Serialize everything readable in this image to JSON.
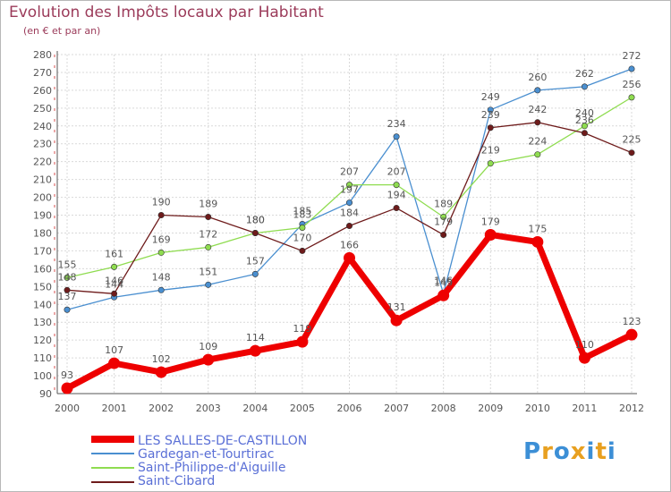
{
  "header": {
    "title": "Evolution des Impôts locaux par Habitant",
    "subtitle": "(en € et par an)"
  },
  "logo": {
    "text": "Proxiti"
  },
  "chart_data": {
    "type": "line",
    "title": "Evolution des Impôts locaux par Habitant",
    "subtitle": "(en € et par an)",
    "xlabel": "",
    "ylabel": "",
    "ylim": [
      90,
      280
    ],
    "yticks": [
      90,
      100,
      110,
      120,
      130,
      140,
      150,
      160,
      170,
      180,
      190,
      200,
      210,
      220,
      230,
      240,
      250,
      260,
      270,
      280
    ],
    "categories": [
      "2000",
      "2001",
      "2002",
      "2003",
      "2004",
      "2005",
      "2006",
      "2007",
      "2008",
      "2009",
      "2010",
      "2011",
      "2012"
    ],
    "grid": true,
    "legend_position": "bottom-left",
    "series": [
      {
        "name": "LES SALLES-DE-CASTILLON",
        "color": "#ee0000",
        "values": [
          93,
          107,
          102,
          109,
          114,
          119,
          166,
          131,
          145,
          179,
          175,
          110,
          123
        ]
      },
      {
        "name": "Gardegan-et-Tourtirac",
        "color": "#4a8fd0",
        "values": [
          137,
          144,
          148,
          151,
          157,
          185,
          197,
          234,
          146,
          249,
          260,
          262,
          272
        ]
      },
      {
        "name": "Saint-Philippe-d'Aiguille",
        "color": "#8fdc50",
        "values": [
          155,
          161,
          169,
          172,
          180,
          183,
          207,
          207,
          189,
          219,
          224,
          240,
          256
        ]
      },
      {
        "name": "Saint-Cibard",
        "color": "#6e1b1b",
        "values": [
          148,
          146,
          190,
          189,
          180,
          170,
          184,
          194,
          179,
          239,
          242,
          236,
          225
        ]
      }
    ]
  }
}
